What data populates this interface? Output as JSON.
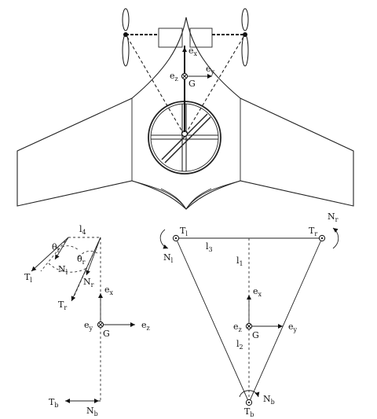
{
  "labels": {
    "ex": "e",
    "ex_sub": "x",
    "ey": "e",
    "ey_sub": "y",
    "ez": "e",
    "ez_sub": "z",
    "G": "G",
    "l4": "l",
    "l4_sub": "4",
    "theta_l": "θ",
    "theta_l_sub": "l",
    "theta_r": "θ",
    "theta_r_sub": "r",
    "Nl": "N",
    "Nl_sub": "l",
    "Nr": "N",
    "Nr_sub": "r",
    "Tl": "T",
    "Tl_sub": "l",
    "Tr": "T",
    "Tr_sub": "r",
    "Tb": "T",
    "Tb_sub": "b",
    "Nb": "N",
    "Nb_sub": "b",
    "l1": "l",
    "l1_sub": "1",
    "l2": "l",
    "l2_sub": "2",
    "l3": "l",
    "l3_sub": "3"
  }
}
